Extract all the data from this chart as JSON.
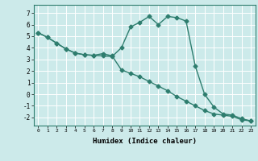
{
  "title": "",
  "xlabel": "Humidex (Indice chaleur)",
  "background_color": "#cceaea",
  "grid_color": "#ffffff",
  "line_color": "#2e7d6e",
  "xlim": [
    -0.5,
    23.5
  ],
  "ylim": [
    -2.7,
    7.7
  ],
  "yticks": [
    -2,
    -1,
    0,
    1,
    2,
    3,
    4,
    5,
    6,
    7
  ],
  "xticks": [
    0,
    1,
    2,
    3,
    4,
    5,
    6,
    7,
    8,
    9,
    10,
    11,
    12,
    13,
    14,
    15,
    16,
    17,
    18,
    19,
    20,
    21,
    22,
    23
  ],
  "line1_x": [
    0,
    1,
    2,
    3,
    4,
    5,
    6,
    7,
    8,
    9,
    10,
    11,
    12,
    13,
    14,
    15,
    16,
    17,
    18,
    19,
    20,
    21,
    22,
    23
  ],
  "line1_y": [
    5.3,
    4.9,
    4.4,
    3.9,
    3.55,
    3.4,
    3.35,
    3.5,
    3.3,
    2.1,
    1.8,
    1.5,
    1.1,
    0.7,
    0.3,
    -0.2,
    -0.6,
    -1.0,
    -1.4,
    -1.7,
    -1.8,
    -1.9,
    -2.2,
    -2.3
  ],
  "line2_x": [
    0,
    1,
    2,
    3,
    4,
    5,
    6,
    7,
    8,
    9,
    10,
    11,
    12,
    13,
    14,
    15,
    16,
    17,
    18,
    19,
    20,
    21,
    22,
    23
  ],
  "line2_y": [
    5.3,
    4.9,
    4.4,
    3.9,
    3.55,
    3.4,
    3.35,
    3.3,
    3.25,
    4.0,
    5.8,
    6.2,
    6.7,
    6.0,
    6.7,
    6.6,
    6.3,
    2.4,
    0.0,
    -1.1,
    -1.7,
    -1.8,
    -2.1,
    -2.3
  ],
  "marker_style": "D",
  "marker_size": 2.5,
  "line_width": 1.0
}
